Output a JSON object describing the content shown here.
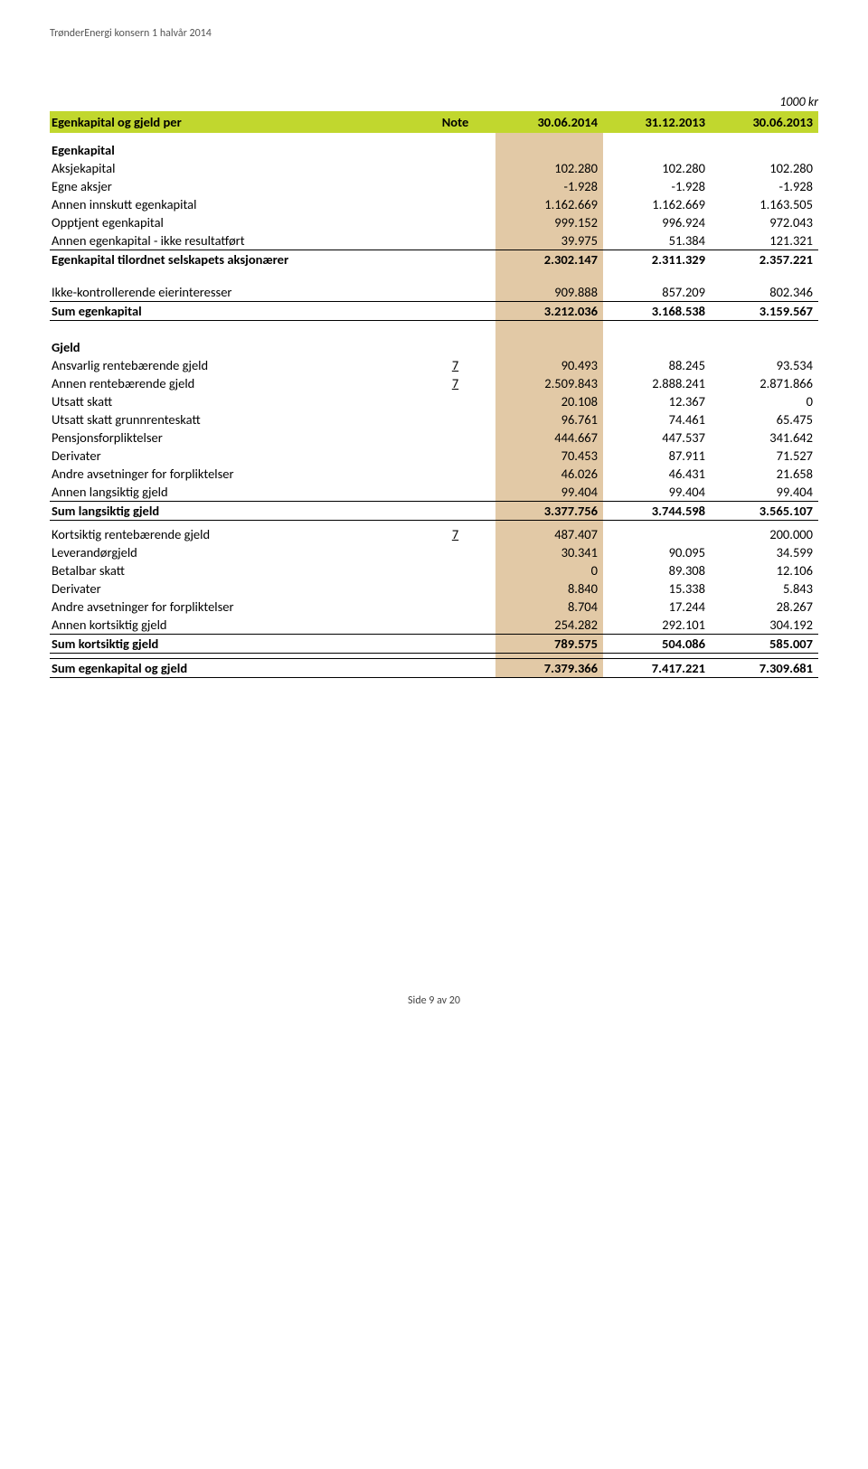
{
  "doc_header": "TrønderEnergi konsern 1 halvår 2014",
  "unit_label": "1000 kr",
  "table_header": {
    "label": "Egenkapital og gjeld per",
    "note": "Note",
    "c1": "30.06.2014",
    "c2": "31.12.2013",
    "c3": "30.06.2013"
  },
  "sections": {
    "egenkapital_title": "Egenkapital",
    "gjeld_title": "Gjeld"
  },
  "rows": {
    "aksjekapital": {
      "label": "Aksjekapital",
      "v1": "102.280",
      "v2": "102.280",
      "v3": "102.280"
    },
    "egne_aksjer": {
      "label": "Egne aksjer",
      "v1": "-1.928",
      "v2": "-1.928",
      "v3": "-1.928"
    },
    "annen_innskutt": {
      "label": "Annen innskutt egenkapital",
      "v1": "1.162.669",
      "v2": "1.162.669",
      "v3": "1.163.505"
    },
    "opptjent": {
      "label": "Opptjent egenkapital",
      "v1": "999.152",
      "v2": "996.924",
      "v3": "972.043"
    },
    "annen_ek_ikke": {
      "label": "Annen egenkapital - ikke resultatført",
      "v1": "39.975",
      "v2": "51.384",
      "v3": "121.321"
    },
    "ek_tilordnet": {
      "label": "Egenkapital tilordnet selskapets aksjonærer",
      "v1": "2.302.147",
      "v2": "2.311.329",
      "v3": "2.357.221"
    },
    "ikke_kontroll": {
      "label": "Ikke-kontrollerende eierinteresser",
      "v1": "909.888",
      "v2": "857.209",
      "v3": "802.346"
    },
    "sum_ek": {
      "label": "Sum egenkapital",
      "v1": "3.212.036",
      "v2": "3.168.538",
      "v3": "3.159.567"
    },
    "ansvarlig": {
      "label": "Ansvarlig rentebærende gjeld",
      "note": "7",
      "v1": "90.493",
      "v2": "88.245",
      "v3": "93.534"
    },
    "annen_rente": {
      "label": "Annen rentebærende gjeld",
      "note": "7",
      "v1": "2.509.843",
      "v2": "2.888.241",
      "v3": "2.871.866"
    },
    "utsatt_skatt": {
      "label": "Utsatt skatt",
      "v1": "20.108",
      "v2": "12.367",
      "v3": "0"
    },
    "utsatt_grunn": {
      "label": "Utsatt skatt grunnrenteskatt",
      "v1": "96.761",
      "v2": "74.461",
      "v3": "65.475"
    },
    "pensjon": {
      "label": "Pensjonsforpliktelser",
      "v1": "444.667",
      "v2": "447.537",
      "v3": "341.642"
    },
    "derivater_l": {
      "label": "Derivater",
      "v1": "70.453",
      "v2": "87.911",
      "v3": "71.527"
    },
    "andre_avs_l": {
      "label": "Andre avsetninger for forpliktelser",
      "v1": "46.026",
      "v2": "46.431",
      "v3": "21.658"
    },
    "annen_langs": {
      "label": "Annen langsiktig gjeld",
      "v1": "99.404",
      "v2": "99.404",
      "v3": "99.404"
    },
    "sum_langs": {
      "label": "Sum langsiktig gjeld",
      "v1": "3.377.756",
      "v2": "3.744.598",
      "v3": "3.565.107"
    },
    "korts_rente": {
      "label": "Kortsiktig rentebærende gjeld",
      "note": "7",
      "v1": "487.407",
      "v2": "",
      "v3": "200.000"
    },
    "leverandor": {
      "label": "Leverandørgjeld",
      "v1": "30.341",
      "v2": "90.095",
      "v3": "34.599"
    },
    "betalbar": {
      "label": "Betalbar skatt",
      "v1": "0",
      "v2": "89.308",
      "v3": "12.106"
    },
    "derivater_k": {
      "label": "Derivater",
      "v1": "8.840",
      "v2": "15.338",
      "v3": "5.843"
    },
    "andre_avs_k": {
      "label": "Andre avsetninger for forpliktelser",
      "v1": "8.704",
      "v2": "17.244",
      "v3": "28.267"
    },
    "annen_korts": {
      "label": "Annen kortsiktig gjeld",
      "v1": "254.282",
      "v2": "292.101",
      "v3": "304.192"
    },
    "sum_korts": {
      "label": "Sum kortsiktig gjeld",
      "v1": "789.575",
      "v2": "504.086",
      "v3": "585.007"
    },
    "sum_ek_gjeld": {
      "label": "Sum egenkapital og gjeld",
      "v1": "7.379.366",
      "v2": "7.417.221",
      "v3": "7.309.681"
    }
  },
  "footer": "Side 9 av 20"
}
